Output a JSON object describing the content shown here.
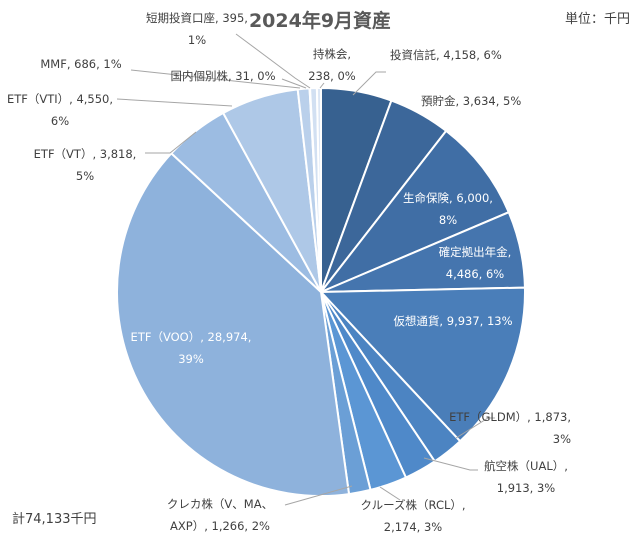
{
  "chart_data": {
    "type": "pie",
    "title": "2024年9月資産",
    "unit_label": "単位：千円",
    "total_label": "計74,133千円",
    "slices": [
      {
        "name": "投資信託",
        "value": 4158,
        "percent": "6%",
        "label_lines": [
          "投資信託, 4,158, 6%"
        ],
        "color": "#376190"
      },
      {
        "name": "預貯金",
        "value": 3634,
        "percent": "5%",
        "label_lines": [
          "預貯金, 3,634, 5%"
        ],
        "color": "#3c679a"
      },
      {
        "name": "生命保険",
        "value": 6000,
        "percent": "8%",
        "label_lines": [
          "生命保険, 6,000,",
          "8%"
        ],
        "color": "#406ea5"
      },
      {
        "name": "確定拠出年金",
        "value": 4486,
        "percent": "6%",
        "label_lines": [
          "確定拠出年金,",
          "4,486, 6%"
        ],
        "color": "#4575ae"
      },
      {
        "name": "仮想通貨",
        "value": 9937,
        "percent": "13%",
        "label_lines": [
          "仮想通貨, 9,937, 13%"
        ],
        "color": "#4a7eb9"
      },
      {
        "name": "ETF（GLDM）",
        "value": 1873,
        "percent": "3%",
        "label_lines": [
          "ETF（GLDM）, 1,873,",
          "3%"
        ],
        "color": "#4c84c2"
      },
      {
        "name": "航空株（UAL）",
        "value": 1913,
        "percent": "3%",
        "label_lines": [
          "航空株（UAL）,",
          "1,913, 3%"
        ],
        "color": "#4f89c9"
      },
      {
        "name": "クルーズ株（RCL）",
        "value": 2174,
        "percent": "3%",
        "label_lines": [
          "クルーズ株（RCL）,",
          "2,174, 3%"
        ],
        "color": "#5b96d4"
      },
      {
        "name": "クレカ株（V、MA、AXP）",
        "value": 1266,
        "percent": "2%",
        "label_lines": [
          "クレカ株（V、MA、",
          "AXP）, 1,266, 2%"
        ],
        "color": "#6b9fd6"
      },
      {
        "name": "ETF（VOO）",
        "value": 28974,
        "percent": "39%",
        "label_lines": [
          "ETF（VOO）, 28,974,",
          "39%"
        ],
        "color": "#8eb2dc"
      },
      {
        "name": "ETF（VT）",
        "value": 3818,
        "percent": "5%",
        "label_lines": [
          "ETF（VT）, 3,818,",
          "5%"
        ],
        "color": "#9cbce2"
      },
      {
        "name": "ETF（VTI）",
        "value": 4550,
        "percent": "6%",
        "label_lines": [
          "ETF（VTI）, 4,550,",
          "6%"
        ],
        "color": "#aec8e7"
      },
      {
        "name": "MMF",
        "value": 686,
        "percent": "1%",
        "label_lines": [
          "MMF, 686, 1%"
        ],
        "color": "#bad0eb"
      },
      {
        "name": "国内個別株",
        "value": 31,
        "percent": "0%",
        "label_lines": [
          "国内個別株, 31, 0%"
        ],
        "color": "#c7d9ef"
      },
      {
        "name": "短期投資口座",
        "value": 395,
        "percent": "1%",
        "label_lines": [
          "短期投資口座, 395,",
          "1%"
        ],
        "color": "#d2e0f2"
      },
      {
        "name": "持株会",
        "value": 238,
        "percent": "0%",
        "label_lines": [
          "持株会,",
          "238, 0%"
        ],
        "color": "#dde7f5"
      }
    ]
  }
}
